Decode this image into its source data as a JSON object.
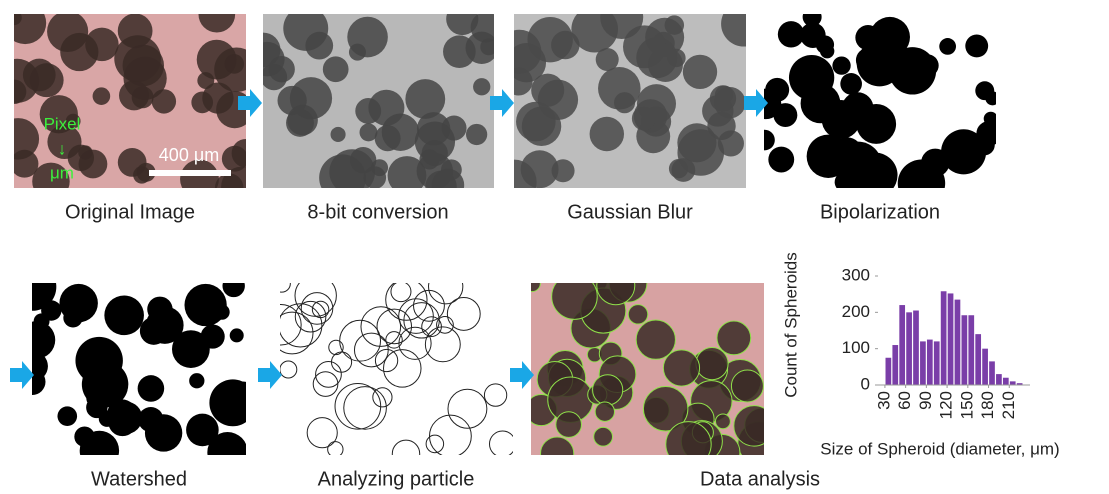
{
  "panels": [
    {
      "label": "Original Image"
    },
    {
      "label": "8-bit conversion"
    },
    {
      "label": "Gaussian Blur"
    },
    {
      "label": "Bipolarization"
    },
    {
      "label": "Watershed"
    },
    {
      "label": "Analyzing particle"
    },
    {
      "label": "Data analysis"
    }
  ],
  "annotations": {
    "pixel": "Pixel",
    "arrow": "↓",
    "unit": "μm",
    "scale_bar": "400 μm"
  },
  "chart_data": {
    "type": "histogram",
    "xlabel": "Size of Spheroid (diameter, μm)",
    "ylabel": "Count of Spheroids",
    "bins": [
      30,
      40,
      50,
      60,
      70,
      80,
      90,
      100,
      110,
      120,
      130,
      140,
      150,
      160,
      170,
      180,
      190,
      200,
      210,
      220,
      230
    ],
    "values": [
      75,
      110,
      220,
      200,
      205,
      120,
      125,
      120,
      258,
      252,
      235,
      192,
      192,
      140,
      100,
      65,
      30,
      20,
      10,
      5
    ],
    "color": "#7a3ea8",
    "xlim": [
      20,
      240
    ],
    "ylim": [
      0,
      300
    ],
    "xticks": [
      30,
      60,
      90,
      120,
      150,
      180,
      210
    ],
    "yticks": [
      0,
      100,
      200,
      300
    ]
  }
}
